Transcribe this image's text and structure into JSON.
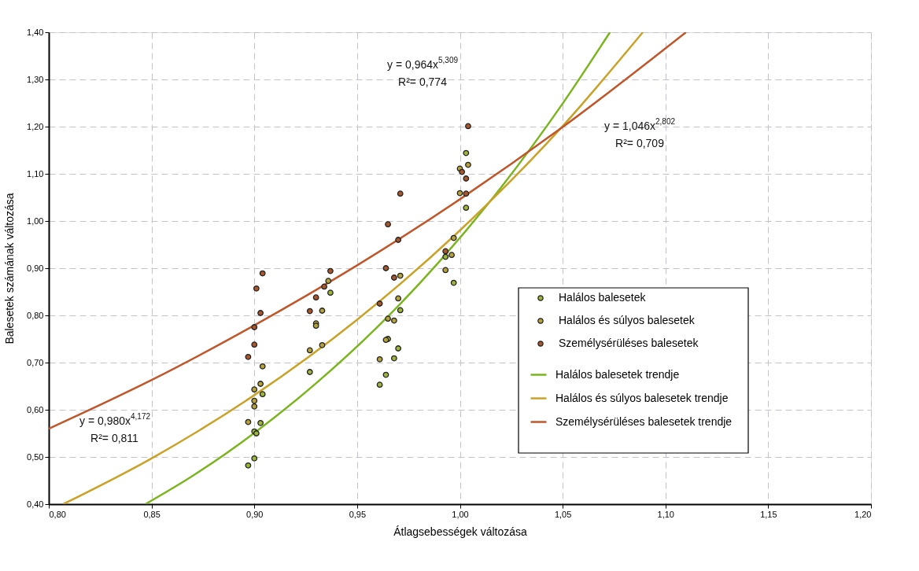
{
  "chart_data": {
    "type": "scatter",
    "xlabel": "Átlagsebességek változása",
    "ylabel": "Balesetek számának változása",
    "xlim": [
      0.8,
      1.2
    ],
    "ylim": [
      0.4,
      1.4
    ],
    "xticks": [
      {
        "value": 0.8,
        "label": "0,80"
      },
      {
        "value": 0.85,
        "label": "0,85"
      },
      {
        "value": 0.9,
        "label": "0,90"
      },
      {
        "value": 0.95,
        "label": "0,95"
      },
      {
        "value": 1.0,
        "label": "1,00"
      },
      {
        "value": 1.05,
        "label": "1,05"
      },
      {
        "value": 1.1,
        "label": "1,10"
      },
      {
        "value": 1.15,
        "label": "1,15"
      },
      {
        "value": 1.2,
        "label": "1,20"
      }
    ],
    "yticks": [
      {
        "value": 0.4,
        "label": "0,40"
      },
      {
        "value": 0.5,
        "label": "0,50"
      },
      {
        "value": 0.6,
        "label": "0,60"
      },
      {
        "value": 0.7,
        "label": "0,70"
      },
      {
        "value": 0.8,
        "label": "0,80"
      },
      {
        "value": 0.9,
        "label": "0,90"
      },
      {
        "value": 1.0,
        "label": "1,00"
      },
      {
        "value": 1.1,
        "label": "1,10"
      },
      {
        "value": 1.2,
        "label": "1,20"
      },
      {
        "value": 1.3,
        "label": "1,30"
      },
      {
        "value": 1.4,
        "label": "1,40"
      }
    ],
    "grid": true,
    "legend": "right",
    "marker": "circle",
    "series": [
      {
        "name": "Halálos balesetek",
        "color": "#9cb53a",
        "x": [
          0.904,
          0.903,
          0.9,
          0.901,
          0.9,
          0.897,
          0.937,
          0.927,
          0.971,
          0.965,
          0.97,
          0.968,
          0.964,
          0.961,
          0.993,
          0.997,
          1.003,
          1.003
        ],
        "values": [
          0.633,
          0.572,
          0.554,
          0.55,
          0.497,
          0.482,
          0.848,
          0.68,
          0.811,
          0.75,
          0.73,
          0.709,
          0.674,
          0.653,
          0.924,
          0.869,
          1.144,
          1.028
        ]
      },
      {
        "name": "Halálos és súlyos balesetek",
        "color": "#b5a33a",
        "x": [
          0.904,
          0.903,
          0.9,
          0.9,
          0.9,
          0.897,
          0.936,
          0.933,
          0.93,
          0.93,
          0.933,
          0.927,
          0.971,
          0.97,
          0.965,
          0.968,
          0.964,
          0.961,
          0.997,
          0.996,
          0.993,
          1.004,
          1.0,
          1.0
        ],
        "values": [
          0.692,
          0.655,
          0.643,
          0.619,
          0.607,
          0.574,
          0.873,
          0.81,
          0.783,
          0.778,
          0.737,
          0.726,
          0.884,
          0.836,
          0.793,
          0.789,
          0.748,
          0.707,
          0.964,
          0.928,
          0.896,
          1.119,
          1.111,
          1.059
        ]
      },
      {
        "name": "Személysérüléses balesetek",
        "color": "#a8562c",
        "x": [
          0.904,
          0.901,
          0.903,
          0.9,
          0.9,
          0.897,
          0.937,
          0.934,
          0.93,
          0.927,
          0.971,
          0.965,
          0.97,
          0.964,
          0.968,
          0.961,
          0.993,
          1.004,
          1.001,
          1.003,
          1.003
        ],
        "values": [
          0.889,
          0.857,
          0.805,
          0.775,
          0.738,
          0.712,
          0.894,
          0.861,
          0.838,
          0.809,
          1.058,
          0.993,
          0.96,
          0.9,
          0.88,
          0.825,
          0.936,
          1.201,
          1.104,
          1.09,
          1.058
        ]
      },
      {
        "name": "Halálos balesetek trendje",
        "type": "line",
        "marker": "none",
        "color": "#7ab51d",
        "x": [
          0.847,
          0.87,
          0.9,
          0.93,
          0.96,
          0.99,
          1.02,
          1.05,
          1.073
        ],
        "values": [
          0.4,
          0.46,
          0.551,
          0.656,
          0.776,
          0.914,
          1.071,
          1.249,
          1.4
        ]
      },
      {
        "name": "Halálos és súlyos balesetek trendje",
        "type": "line",
        "marker": "none",
        "color": "#c9a227",
        "x": [
          0.807,
          0.85,
          0.9,
          0.95,
          1.0,
          1.05,
          1.089
        ],
        "values": [
          0.4,
          0.497,
          0.631,
          0.791,
          0.98,
          1.201,
          1.4
        ]
      },
      {
        "name": "Személysérüléses balesetek trendje",
        "type": "line",
        "marker": "none",
        "color": "#c0562a",
        "x": [
          0.8,
          0.85,
          0.9,
          0.95,
          1.0,
          1.05,
          1.11
        ],
        "values": [
          0.56,
          0.663,
          0.779,
          0.906,
          1.046,
          1.199,
          1.4
        ]
      }
    ],
    "annotations": [
      "y = 0,964x$^{5,309}$",
      "R²= 0,774",
      "y = 1,046x$^{2,802}$",
      "R²= 0,709",
      "y = 0,980x$^{4,172}$",
      "R²= 0,811"
    ]
  }
}
